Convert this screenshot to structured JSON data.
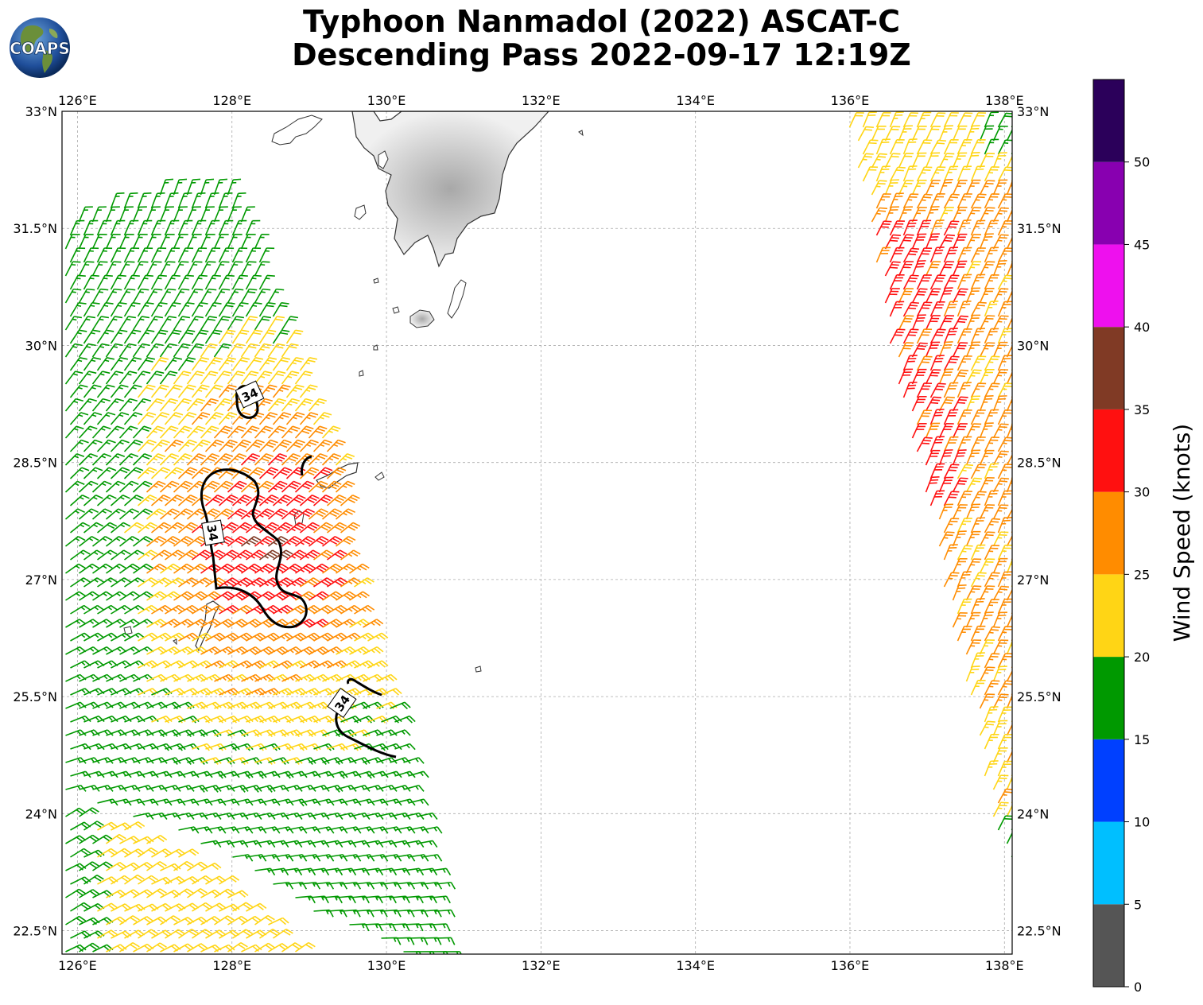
{
  "title": {
    "line1": "Typhoon Nanmadol (2022) ASCAT-C",
    "line2": "Descending Pass 2022-09-17 12:19Z"
  },
  "logo": {
    "text": "COAPS",
    "icon": "globe-logo-icon"
  },
  "map": {
    "lon_range": [
      125.8,
      138.1
    ],
    "lat_range": [
      22.2,
      33.0
    ],
    "lon_ticks": [
      "126°E",
      "128°E",
      "130°E",
      "132°E",
      "134°E",
      "136°E",
      "138°E"
    ],
    "lon_tick_values": [
      126,
      128,
      130,
      132,
      134,
      136,
      138
    ],
    "lat_ticks": [
      "33°N",
      "31.5°N",
      "30°N",
      "28.5°N",
      "27°N",
      "25.5°N",
      "24°N",
      "22.5°N"
    ],
    "lat_tick_values": [
      33,
      31.5,
      30,
      28.5,
      27,
      25.5,
      24,
      22.5
    ],
    "grid": true,
    "grid_style": "dashed gray",
    "land_color": "#ffffff",
    "coast_color": "#333333"
  },
  "contour": {
    "level": 34,
    "label": "34",
    "color": "#000000"
  },
  "colorbar": {
    "label": "Wind Speed (knots)",
    "ticks": [
      "0",
      "5",
      "10",
      "15",
      "20",
      "25",
      "30",
      "35",
      "40",
      "45",
      "50"
    ],
    "bins": [
      {
        "min": 0,
        "max": 5,
        "color": "#555555"
      },
      {
        "min": 5,
        "max": 10,
        "color": "#00bfff"
      },
      {
        "min": 10,
        "max": 15,
        "color": "#0040ff"
      },
      {
        "min": 15,
        "max": 20,
        "color": "#009900"
      },
      {
        "min": 20,
        "max": 25,
        "color": "#ffd515"
      },
      {
        "min": 25,
        "max": 30,
        "color": "#ff8c00"
      },
      {
        "min": 30,
        "max": 35,
        "color": "#ff1010"
      },
      {
        "min": 35,
        "max": 40,
        "color": "#803a25"
      },
      {
        "min": 40,
        "max": 45,
        "color": "#ee10ee"
      },
      {
        "min": 45,
        "max": 50,
        "color": "#8800b0"
      },
      {
        "min": 50,
        "max": 55,
        "color": "#2b005a"
      }
    ]
  }
}
